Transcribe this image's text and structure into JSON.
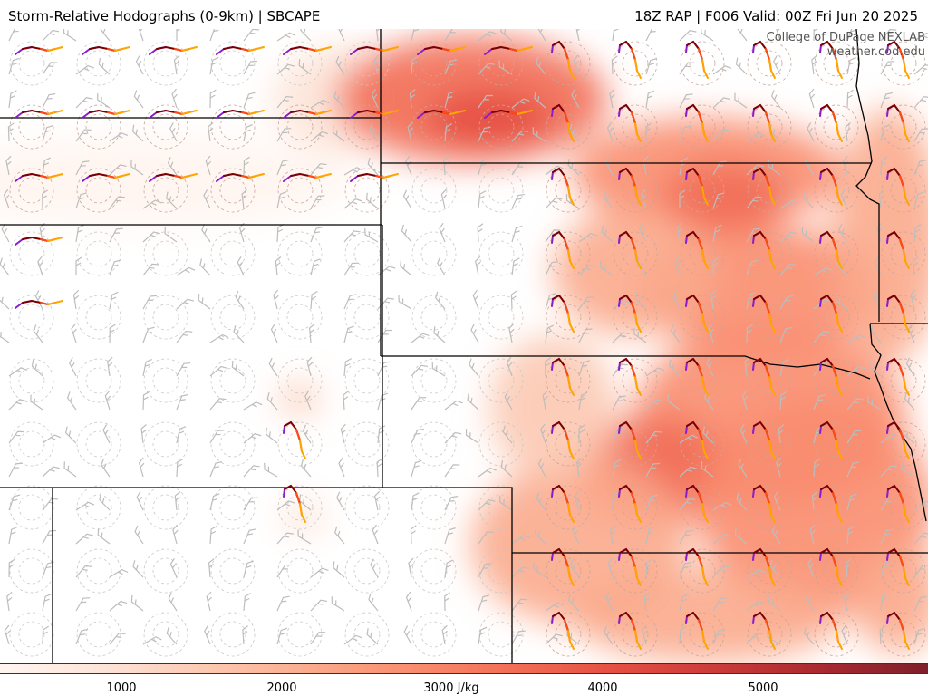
{
  "header": {
    "left_title": "Storm-Relative Hodographs (0-9km) | SBCAPE",
    "right_title": "18Z RAP | F006 Valid: 00Z Fri Jun 20 2025"
  },
  "credit": {
    "line1": "College of DuPage NEXLAB",
    "line2": "weather.cod.edu"
  },
  "colorbar": {
    "variable": "SBCAPE",
    "unit": "J/kg",
    "range": [
      0,
      6000
    ],
    "tick_labels": [
      "1000",
      "2000",
      "3000 J/kg",
      "4000",
      "5000"
    ],
    "colors": [
      "#fff5f0",
      "#fde4d8",
      "#fcc9b2",
      "#fbab8d",
      "#f98d6f",
      "#f26d55",
      "#e44e42",
      "#c93a39",
      "#a8292f",
      "#7e1f2a"
    ]
  },
  "hodograph_colors": {
    "0-1km": "#8b1ccc",
    "1-3km": "#7a0000",
    "3-6km": "#ff4a10",
    "6-9km": "#ffa500"
  }
}
